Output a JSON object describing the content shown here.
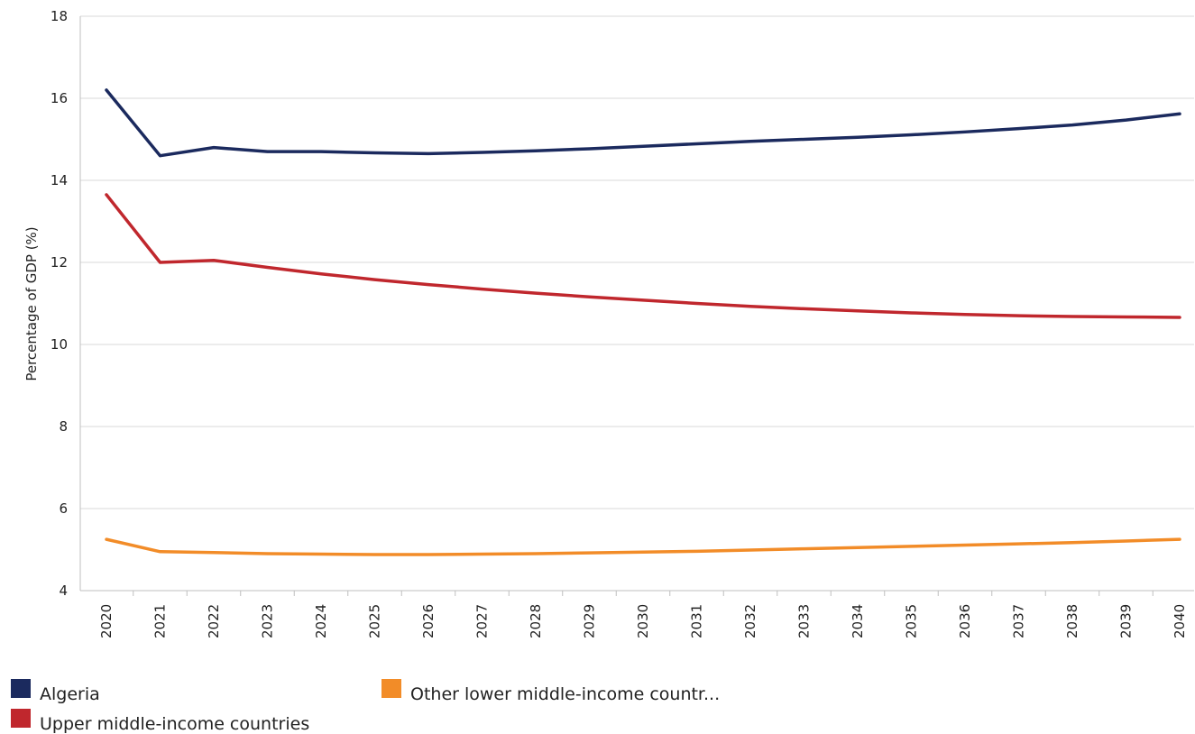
{
  "chart_data": {
    "type": "line",
    "title": "",
    "xlabel": "",
    "ylabel": "Percentage of GDP (%)",
    "ylim": [
      4,
      18
    ],
    "yticks": [
      4,
      6,
      8,
      10,
      12,
      14,
      16,
      18
    ],
    "grid": true,
    "legend_position": "bottom-left",
    "x": [
      "2020",
      "2021",
      "2022",
      "2023",
      "2024",
      "2025",
      "2026",
      "2027",
      "2028",
      "2029",
      "2030",
      "2031",
      "2032",
      "2033",
      "2034",
      "2035",
      "2036",
      "2037",
      "2038",
      "2039",
      "2040"
    ],
    "series": [
      {
        "name": "Algeria",
        "color": "#1b2a5e",
        "values": [
          16.2,
          14.6,
          14.8,
          14.7,
          14.7,
          14.67,
          14.65,
          14.68,
          14.72,
          14.77,
          14.83,
          14.89,
          14.95,
          15.0,
          15.05,
          15.11,
          15.18,
          15.26,
          15.35,
          15.47,
          15.62
        ]
      },
      {
        "name": "Upper middle-income countries",
        "color": "#c0272d",
        "values": [
          13.65,
          12.0,
          12.05,
          11.88,
          11.72,
          11.58,
          11.46,
          11.35,
          11.25,
          11.16,
          11.08,
          11.0,
          10.93,
          10.87,
          10.82,
          10.77,
          10.73,
          10.7,
          10.68,
          10.67,
          10.66
        ]
      },
      {
        "name": "Other lower middle-income countr...",
        "color": "#f28c28",
        "values": [
          5.25,
          4.95,
          4.93,
          4.9,
          4.89,
          4.88,
          4.88,
          4.89,
          4.9,
          4.92,
          4.94,
          4.96,
          4.99,
          5.02,
          5.05,
          5.08,
          5.11,
          5.14,
          5.17,
          5.21,
          5.25
        ]
      }
    ]
  }
}
